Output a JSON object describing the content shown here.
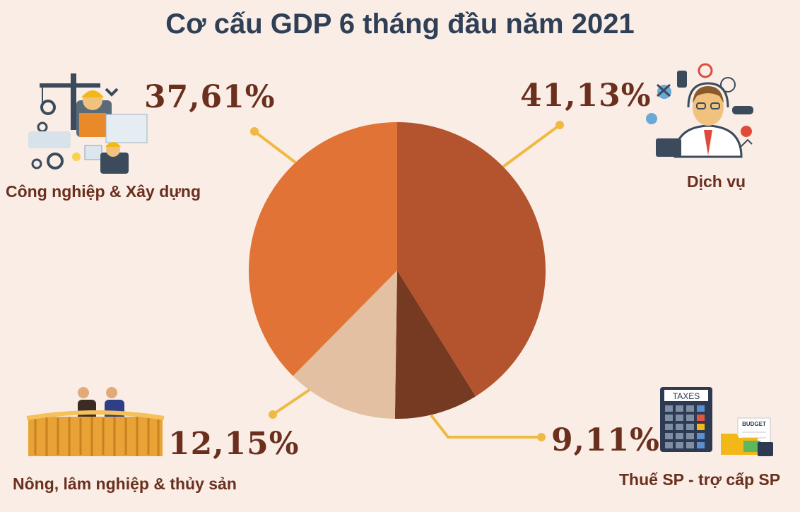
{
  "chart_data": {
    "type": "pie",
    "title": "Cơ cấu GDP 6 tháng đầu năm 2021",
    "slices": [
      {
        "label": "Dịch vụ",
        "value_text": "41,13%",
        "value": 41.13,
        "color": "#b4542e"
      },
      {
        "label": "Thuế SP - trợ cấp SP",
        "value_text": "9,11%",
        "value": 9.11,
        "color": "#763a22"
      },
      {
        "label": "Nông, lâm nghiệp & thủy sản",
        "value_text": "12,15%",
        "value": 12.15,
        "color": "#e2c0a1"
      },
      {
        "label": "Công nghiệp & Xây dựng",
        "value_text": "37,61%",
        "value": 37.61,
        "color": "#e17337"
      }
    ],
    "leader_color": "#efb943"
  },
  "icons": {
    "industry": "construction-workers-icon",
    "services": "service-agent-icon",
    "agriculture": "farmers-wheat-icon",
    "taxes": "taxes-calculator-icon",
    "budget": "budget-folder-icon"
  },
  "icon_text": {
    "taxes": "TAXES",
    "budget": "BUDGET"
  }
}
